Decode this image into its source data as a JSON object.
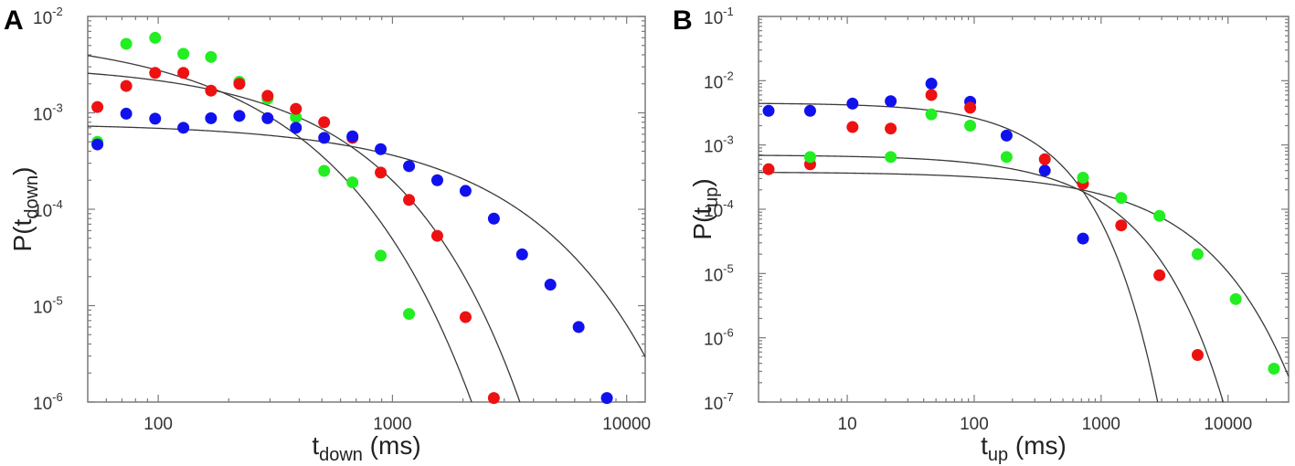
{
  "chart_data": [
    {
      "panel_label": "A",
      "type": "scatter",
      "xscale": "log",
      "yscale": "log",
      "xlim": [
        50,
        12000
      ],
      "ylim": [
        1e-06,
        0.01
      ],
      "xlabel": {
        "main": "t",
        "sub": "down",
        "suffix": " (ms)"
      },
      "ylabel": {
        "main": "P(t",
        "sub": "down",
        "suffix": ")"
      },
      "xticks": [
        {
          "value": 100,
          "label": "100"
        },
        {
          "value": 1000,
          "label": "1000"
        },
        {
          "value": 10000,
          "label": "10000"
        }
      ],
      "yticks": [
        {
          "value": 0.01,
          "base": "10",
          "exp": "-2"
        },
        {
          "value": 0.001,
          "base": "10",
          "exp": "-3"
        },
        {
          "value": 0.0001,
          "base": "10",
          "exp": "-4"
        },
        {
          "value": 1e-05,
          "base": "10",
          "exp": "-5"
        },
        {
          "value": 1e-06,
          "base": "10",
          "exp": "-6"
        }
      ],
      "series": [
        {
          "name": "green",
          "color": "#22ee22",
          "x": [
            55,
            73,
            97,
            128,
            168,
            222,
            293,
            387,
            511,
            675,
            891,
            1177
          ],
          "y": [
            0.0005,
            0.0052,
            0.006,
            0.0041,
            0.0038,
            0.0021,
            0.0014,
            0.0009,
            0.00025,
            0.00019,
            3.3e-05,
            8.2e-06
          ]
        },
        {
          "name": "red",
          "color": "#ee1111",
          "x": [
            55,
            73,
            97,
            128,
            168,
            222,
            293,
            387,
            511,
            675,
            891,
            1177,
            1554,
            2052,
            2710
          ],
          "y": [
            0.00115,
            0.0019,
            0.0026,
            0.0026,
            0.0017,
            0.002,
            0.0015,
            0.0011,
            0.0008,
            0.00055,
            0.00024,
            0.000125,
            5.3e-05,
            7.6e-06,
            1.1e-06
          ]
        },
        {
          "name": "blue",
          "color": "#1111ee",
          "x": [
            55,
            73,
            97,
            128,
            168,
            222,
            293,
            387,
            511,
            675,
            891,
            1177,
            1554,
            2052,
            2710,
            3577,
            4723,
            6236,
            8233
          ],
          "y": [
            0.00047,
            0.00098,
            0.00087,
            0.0007,
            0.00088,
            0.00093,
            0.00088,
            0.0007,
            0.00055,
            0.00057,
            0.00042,
            0.00028,
            0.0002,
            0.000155,
            8e-05,
            3.4e-05,
            1.65e-05,
            6e-06,
            1.1e-06
          ]
        }
      ],
      "fits": [
        {
          "name": "green-fit",
          "A": 0.0066,
          "tau": 120,
          "beta": 0.75
        },
        {
          "name": "red-fit",
          "A": 0.0032,
          "tau": 300,
          "beta": 0.85
        },
        {
          "name": "blue-fit",
          "A": 0.00078,
          "tau": 1400,
          "beta": 0.8
        }
      ]
    },
    {
      "panel_label": "B",
      "type": "scatter",
      "xscale": "log",
      "yscale": "log",
      "xlim": [
        2,
        30000
      ],
      "ylim": [
        1e-07,
        0.1
      ],
      "xlabel": {
        "main": "t",
        "sub": "up",
        "suffix": " (ms)"
      },
      "ylabel": {
        "main": "P(t",
        "sub": "up",
        "suffix": ")"
      },
      "xticks": [
        {
          "value": 10,
          "label": "10"
        },
        {
          "value": 100,
          "label": "100"
        },
        {
          "value": 1000,
          "label": "1000"
        },
        {
          "value": 10000,
          "label": "10000"
        }
      ],
      "yticks": [
        {
          "value": 0.1,
          "base": "10",
          "exp": "-1"
        },
        {
          "value": 0.01,
          "base": "10",
          "exp": "-2"
        },
        {
          "value": 0.001,
          "base": "10",
          "exp": "-3"
        },
        {
          "value": 0.0001,
          "base": "10",
          "exp": "-4"
        },
        {
          "value": 1e-05,
          "base": "10",
          "exp": "-5"
        },
        {
          "value": 1e-06,
          "base": "10",
          "exp": "-6"
        },
        {
          "value": 1e-07,
          "base": "10",
          "exp": "-7"
        }
      ],
      "series": [
        {
          "name": "blue",
          "color": "#1111ee",
          "x": [
            2.4,
            5.1,
            11,
            22,
            46,
            93,
            180,
            360,
            720
          ],
          "y": [
            0.0034,
            0.0034,
            0.0044,
            0.0048,
            0.009,
            0.0047,
            0.0014,
            0.0004,
            3.5e-05
          ]
        },
        {
          "name": "red",
          "color": "#ee1111",
          "x": [
            2.4,
            5.1,
            11,
            22,
            46,
            93,
            360,
            720,
            1440,
            2880,
            5760
          ],
          "y": [
            0.00042,
            0.0005,
            0.0019,
            0.0018,
            0.006,
            0.0038,
            0.0006,
            0.00025,
            5.6e-05,
            9.4e-06,
            5.4e-07
          ]
        },
        {
          "name": "green",
          "color": "#22ee22",
          "x": [
            5.1,
            22,
            46,
            93,
            180,
            720,
            1440,
            2880,
            5760,
            11500,
            23000
          ],
          "y": [
            0.00065,
            0.00065,
            0.003,
            0.002,
            0.00065,
            0.00031,
            0.00015,
            7.9e-05,
            2e-05,
            4e-06,
            3.3e-07
          ]
        }
      ],
      "fits": [
        {
          "name": "blue-fit",
          "A": 0.0045,
          "tau": 200,
          "beta": 0.9
        },
        {
          "name": "red-fit",
          "A": 0.0007,
          "tau": 500,
          "beta": 0.75
        },
        {
          "name": "green-fit",
          "A": 0.00038,
          "tau": 1400,
          "beta": 0.65
        }
      ]
    }
  ]
}
